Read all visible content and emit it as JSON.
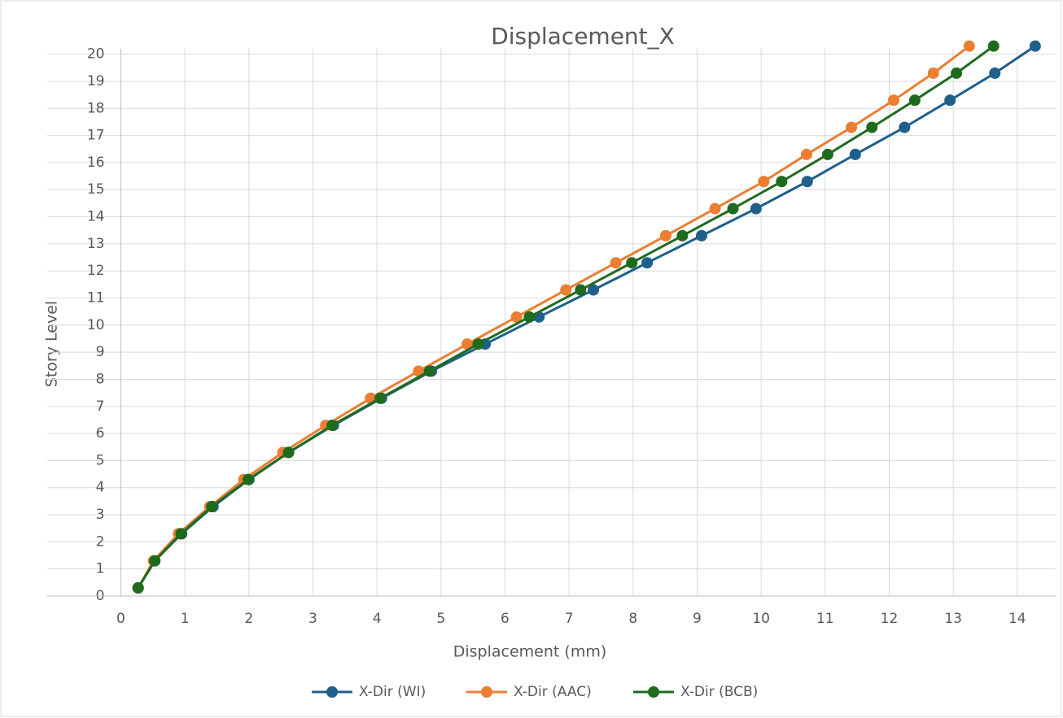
{
  "chart_data": {
    "type": "line",
    "title": "Displacement_X",
    "x_label": "Displacement (mm)",
    "y_label": "Story Level",
    "xlim": [
      -1.15,
      14.6
    ],
    "ylim": [
      0,
      20.2
    ],
    "xticks": [
      0,
      1,
      2,
      3,
      4,
      5,
      6,
      7,
      8,
      9,
      10,
      11,
      12,
      13,
      14
    ],
    "yticks": [
      0,
      1,
      2,
      3,
      4,
      5,
      6,
      7,
      8,
      9,
      10,
      11,
      12,
      13,
      14,
      15,
      16,
      17,
      18,
      19,
      20
    ],
    "grid": true,
    "legend": "bottom",
    "series": [
      {
        "name": "X-Dir (WI)",
        "color": "#1f5f8b",
        "x": [
          0.27,
          0.53,
          0.95,
          1.44,
          2.0,
          2.62,
          3.32,
          4.07,
          4.85,
          5.69,
          6.53,
          7.38,
          8.22,
          9.07,
          9.92,
          10.72,
          11.47,
          12.24,
          12.95,
          13.65,
          14.28
        ],
        "values": [
          0.3,
          1.3,
          2.3,
          3.3,
          4.3,
          5.3,
          6.3,
          7.3,
          8.3,
          9.3,
          10.3,
          11.3,
          12.3,
          13.3,
          14.3,
          15.3,
          16.3,
          17.3,
          18.3,
          19.3,
          20.3
        ]
      },
      {
        "name": "X-Dir (AAC)",
        "color": "#ed7d31",
        "x": [
          0.27,
          0.51,
          0.9,
          1.39,
          1.92,
          2.53,
          3.2,
          3.9,
          4.65,
          5.41,
          6.18,
          6.95,
          7.73,
          8.51,
          9.28,
          10.04,
          10.71,
          11.41,
          12.07,
          12.69,
          13.25
        ],
        "values": [
          0.3,
          1.3,
          2.3,
          3.3,
          4.3,
          5.3,
          6.3,
          7.3,
          8.3,
          9.3,
          10.3,
          11.3,
          12.3,
          13.3,
          14.3,
          15.3,
          16.3,
          17.3,
          18.3,
          19.3,
          20.3
        ]
      },
      {
        "name": "X-Dir (BCB)",
        "color": "#1e6b1e",
        "x": [
          0.27,
          0.53,
          0.94,
          1.42,
          1.99,
          2.62,
          3.3,
          4.05,
          4.82,
          5.58,
          6.38,
          7.18,
          7.98,
          8.77,
          9.56,
          10.32,
          11.04,
          11.73,
          12.4,
          13.05,
          13.63
        ],
        "values": [
          0.3,
          1.3,
          2.3,
          3.3,
          4.3,
          5.3,
          6.3,
          7.3,
          8.3,
          9.3,
          10.3,
          11.3,
          12.3,
          13.3,
          14.3,
          15.3,
          16.3,
          17.3,
          18.3,
          19.3,
          20.3
        ]
      }
    ]
  }
}
